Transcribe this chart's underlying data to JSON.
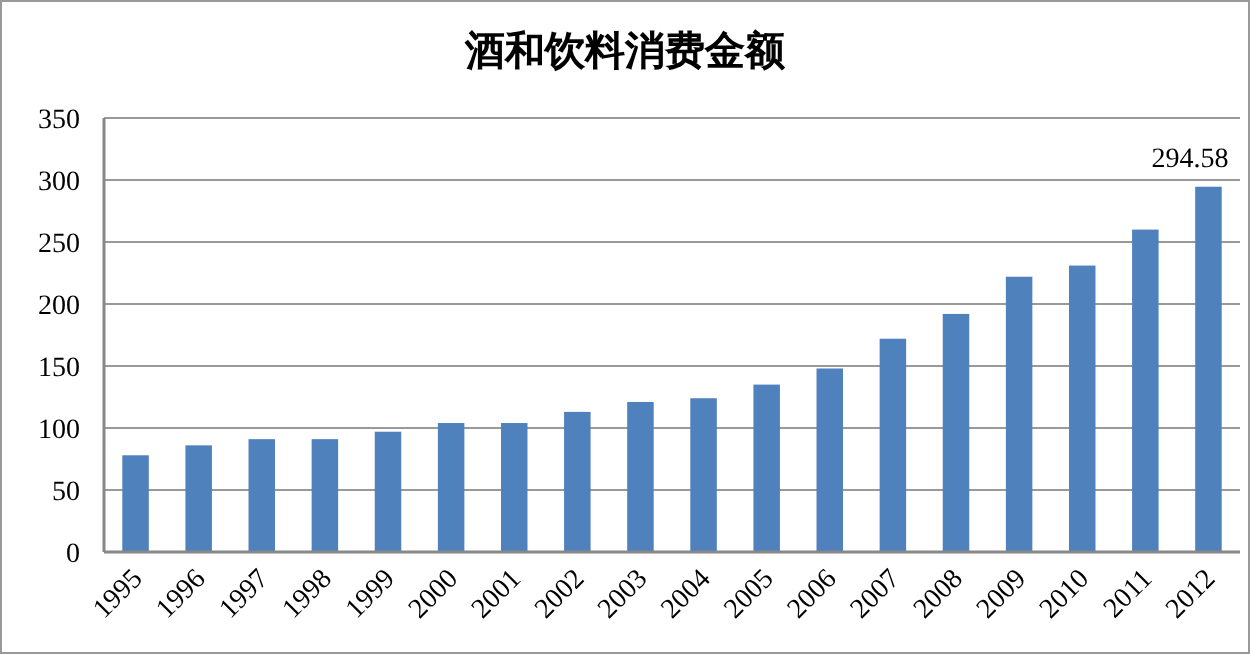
{
  "chart_data": {
    "type": "bar",
    "title": "酒和饮料消费金额",
    "categories": [
      "1995",
      "1996",
      "1997",
      "1998",
      "1999",
      "2000",
      "2001",
      "2002",
      "2003",
      "2004",
      "2005",
      "2006",
      "2007",
      "2008",
      "2009",
      "2010",
      "2011",
      "2012"
    ],
    "values": [
      78,
      86,
      91,
      91,
      97,
      104,
      104,
      113,
      121,
      124,
      135,
      148,
      172,
      192,
      222,
      231,
      260,
      294.58
    ],
    "value_labels": [
      null,
      null,
      null,
      null,
      null,
      null,
      null,
      null,
      null,
      null,
      null,
      null,
      null,
      null,
      null,
      null,
      null,
      "294.58"
    ],
    "color": "#4f81bd",
    "ylim": [
      0,
      350
    ],
    "yticks": [
      0,
      50,
      100,
      150,
      200,
      250,
      300,
      350
    ],
    "grid": "y"
  }
}
